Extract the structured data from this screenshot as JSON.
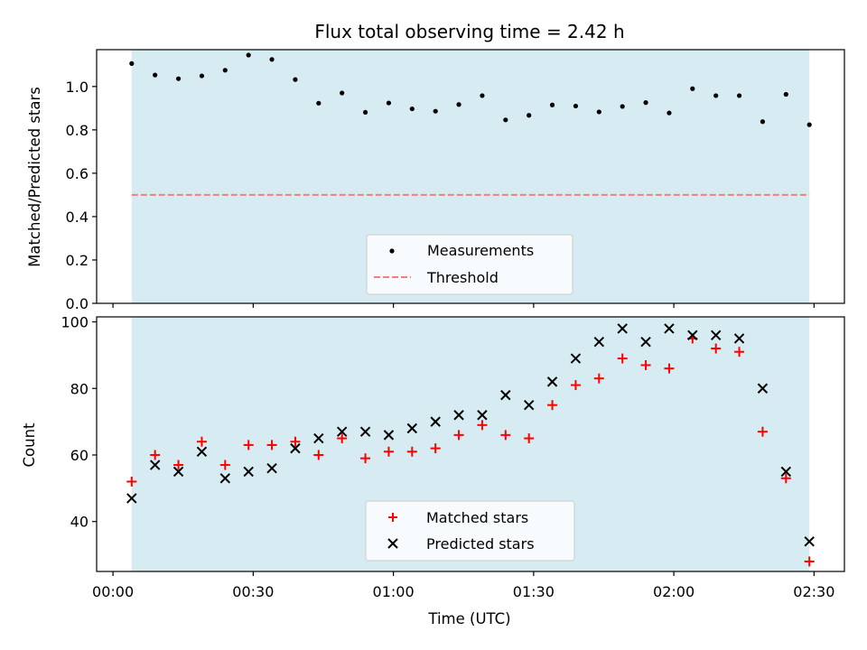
{
  "colors": {
    "background": "#ffffff",
    "span_fill": "#add8e6",
    "measurement": "#000000",
    "threshold": "#f08080",
    "matched": "#ff0000",
    "predicted": "#000000",
    "axes": "#000000"
  },
  "chart_data": [
    {
      "type": "scatter",
      "id": "ratio",
      "title": "Flux total observing time = 2.42 h",
      "xlabel": "",
      "ylabel": "Matched/Predicted stars",
      "xlim_minutes": [
        -3.5,
        156.5
      ],
      "ylim": [
        0,
        1.17
      ],
      "yticks": [
        0.0,
        0.2,
        0.4,
        0.6,
        0.8,
        1.0
      ],
      "ytick_labels": [
        "0.0",
        "0.2",
        "0.4",
        "0.6",
        "0.8",
        "1.0"
      ],
      "shaded_span_minutes": [
        4,
        149
      ],
      "x_minutes": [
        4,
        9,
        14,
        19,
        24,
        29,
        34,
        39,
        44,
        49,
        54,
        59,
        64,
        69,
        74,
        79,
        84,
        89,
        94,
        99,
        104,
        109,
        114,
        119,
        124,
        129,
        134,
        139,
        144,
        149
      ],
      "series": [
        {
          "name": "Measurements",
          "marker": "dot",
          "values": [
            1.106,
            1.053,
            1.036,
            1.049,
            1.075,
            1.145,
            1.125,
            1.032,
            0.923,
            0.97,
            0.881,
            0.924,
            0.897,
            0.886,
            0.917,
            0.958,
            0.846,
            0.867,
            0.915,
            0.91,
            0.883,
            0.908,
            0.926,
            0.878,
            0.99,
            0.958,
            0.958,
            0.838,
            0.964,
            0.824
          ]
        }
      ],
      "threshold": {
        "name": "Threshold",
        "value": 0.5
      },
      "legend": {
        "position": "lower-center",
        "entries": [
          "Measurements",
          "Threshold"
        ]
      }
    },
    {
      "type": "scatter",
      "id": "counts",
      "title": "",
      "xlabel": "Time (UTC)",
      "ylabel": "Count",
      "xlim_minutes": [
        -3.5,
        156.5
      ],
      "ylim": [
        25,
        101.5
      ],
      "yticks": [
        40,
        60,
        80,
        100
      ],
      "ytick_labels": [
        "40",
        "60",
        "80",
        "100"
      ],
      "xticks_minutes": [
        0,
        30,
        60,
        90,
        120,
        150
      ],
      "xtick_labels": [
        "00:00",
        "00:30",
        "01:00",
        "01:30",
        "02:00",
        "02:30"
      ],
      "shaded_span_minutes": [
        4,
        149
      ],
      "x_minutes": [
        4,
        9,
        14,
        19,
        24,
        29,
        34,
        39,
        44,
        49,
        54,
        59,
        64,
        69,
        74,
        79,
        84,
        89,
        94,
        99,
        104,
        109,
        114,
        119,
        124,
        129,
        134,
        139,
        144,
        149
      ],
      "series": [
        {
          "name": "Matched stars",
          "marker": "plus",
          "values": [
            52,
            60,
            57,
            64,
            57,
            63,
            63,
            64,
            60,
            65,
            59,
            61,
            61,
            62,
            66,
            69,
            66,
            65,
            75,
            81,
            83,
            89,
            87,
            86,
            95,
            92,
            91,
            67,
            53,
            28
          ]
        },
        {
          "name": "Predicted stars",
          "marker": "x",
          "values": [
            47,
            57,
            55,
            61,
            53,
            55,
            56,
            62,
            65,
            67,
            67,
            66,
            68,
            70,
            72,
            72,
            78,
            75,
            82,
            89,
            94,
            98,
            94,
            98,
            96,
            96,
            95,
            80,
            55,
            34
          ]
        }
      ],
      "legend": {
        "position": "lower-center",
        "entries": [
          "Matched stars",
          "Predicted stars"
        ]
      }
    }
  ]
}
